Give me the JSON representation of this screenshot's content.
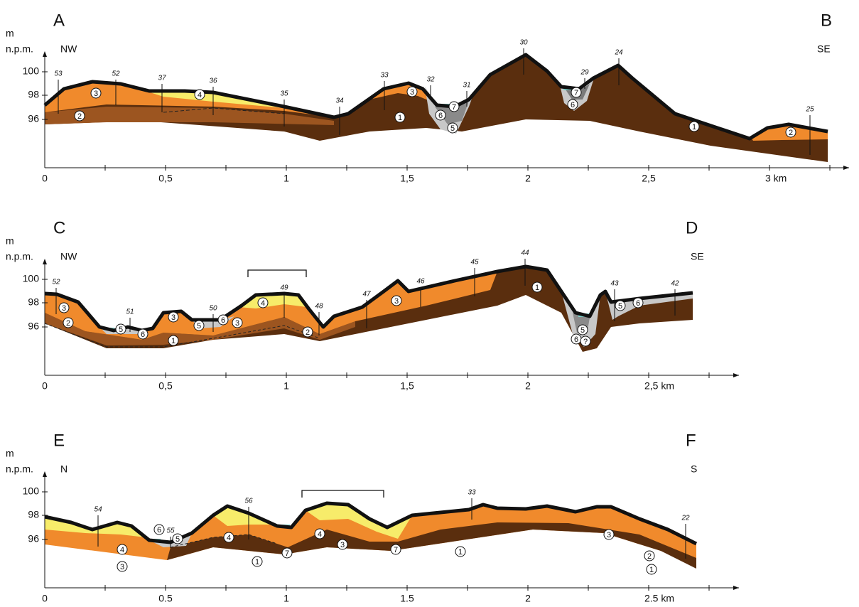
{
  "panels": [
    {
      "start_label": "A",
      "end_label": "B",
      "unit": "m",
      "datum": "n.p.m.",
      "start_direction": "NW",
      "end_direction": "SE",
      "y_tick_labels": [
        "100",
        "98",
        "96"
      ],
      "x_tick_labels": [
        "0",
        "0,5",
        "1",
        "1,5",
        "2",
        "2,5",
        "3 km"
      ],
      "boreholes": [
        "53",
        "52",
        "37",
        "36",
        "35",
        "34",
        "33",
        "32",
        "31",
        "30",
        "29",
        "24",
        "25"
      ],
      "layer_labels": [
        "3",
        "2",
        "4",
        "1",
        "3",
        "6",
        "7",
        "5",
        "7",
        "6",
        "1",
        "2"
      ]
    },
    {
      "start_label": "C",
      "end_label": "D",
      "unit": "m",
      "datum": "n.p.m.",
      "start_direction": "NW",
      "end_direction": "SE",
      "y_tick_labels": [
        "100",
        "98",
        "96"
      ],
      "x_tick_labels": [
        "0",
        "0,5",
        "1",
        "1,5",
        "2",
        "2,5 km"
      ],
      "boreholes": [
        "52",
        "51",
        "50",
        "49",
        "48",
        "47",
        "46",
        "45",
        "44",
        "43",
        "42"
      ],
      "layer_labels": [
        "3",
        "2",
        "5",
        "6",
        "3",
        "1",
        "5",
        "6",
        "3",
        "4",
        "2",
        "3",
        "1",
        "5",
        "6",
        "?",
        "5",
        "6"
      ]
    },
    {
      "start_label": "E",
      "end_label": "F",
      "unit": "m",
      "datum": "n.p.m.",
      "start_direction": "N",
      "end_direction": "S",
      "y_tick_labels": [
        "100",
        "98",
        "96"
      ],
      "x_tick_labels": [
        "0",
        "0.5",
        "1",
        "1.5",
        "2",
        "2.5 km"
      ],
      "boreholes": [
        "54",
        "55",
        "56",
        "33",
        "22"
      ],
      "layer_labels": [
        "4",
        "3",
        "6",
        "5",
        "4",
        "1",
        "7",
        "4",
        "3",
        "7",
        "1",
        "3",
        "2",
        "1"
      ]
    }
  ]
}
